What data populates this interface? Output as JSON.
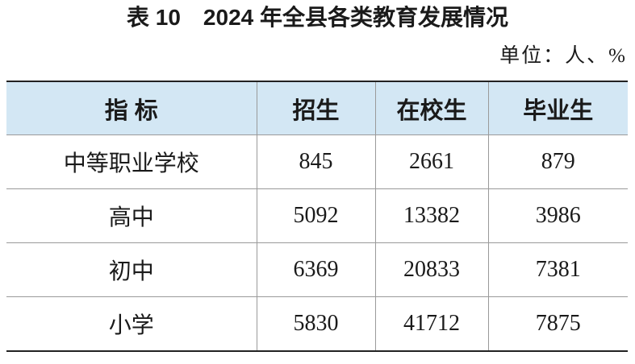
{
  "header": {
    "title": "表 10　2024 年全县各类教育发展情况",
    "unit": "单位：人、%"
  },
  "table": {
    "columns": [
      "指 标",
      "招生",
      "在校生",
      "毕业生"
    ],
    "rows": [
      [
        "中等职业学校",
        845,
        2661,
        879
      ],
      [
        "高中",
        5092,
        13382,
        3986
      ],
      [
        "初中",
        6369,
        20833,
        7381
      ],
      [
        "小学",
        5830,
        41712,
        7875
      ]
    ]
  }
}
